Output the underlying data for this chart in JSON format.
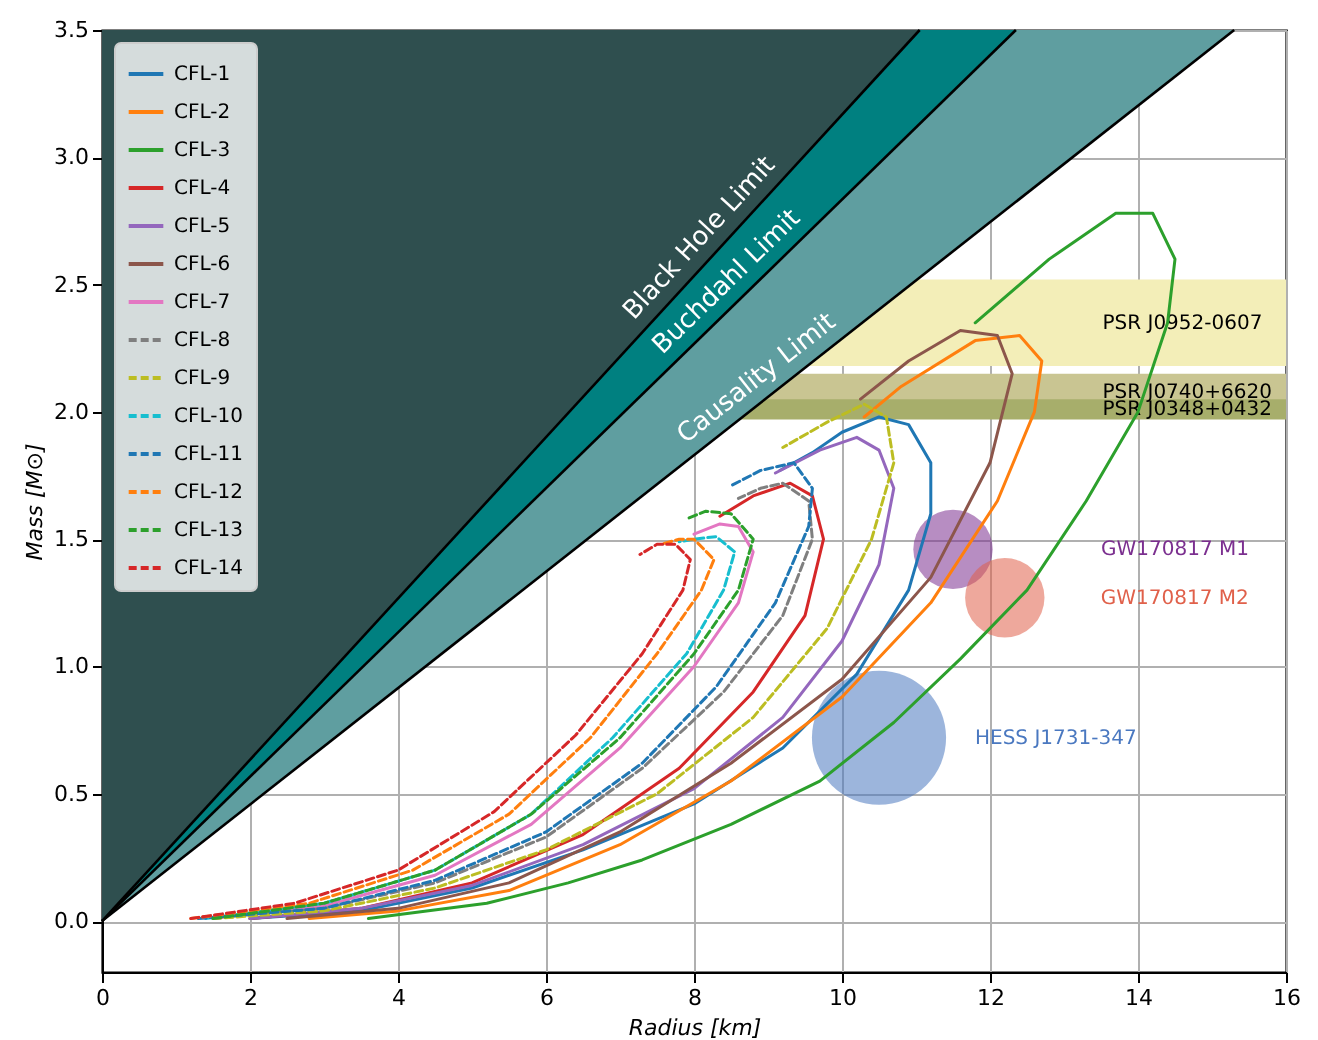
{
  "chart_data": {
    "type": "line",
    "xlabel": "Radius [km]",
    "ylabel": "Mass [M⊙]",
    "xlim": [
      0,
      16
    ],
    "xticks": [
      0,
      2,
      4,
      6,
      8,
      10,
      12,
      14,
      16
    ],
    "ylim": [
      -0.2,
      3.5
    ],
    "yticks": [
      {
        "value": 0,
        "label": "0.0"
      },
      0.5,
      {
        "value": 1,
        "label": "1.0"
      },
      1.5,
      {
        "value": 2,
        "label": "2.0"
      },
      2.5,
      {
        "value": 3,
        "label": "3.0"
      },
      3.5
    ],
    "grid": true,
    "legend": "top left",
    "bands": [
      {
        "axis": "y",
        "from": 2.18,
        "to": 2.52,
        "label": "PSR J0952-0607",
        "color": "#f3eeb8"
      },
      {
        "axis": "y",
        "from": 2.01,
        "to": 2.15,
        "label": "PSR J0740+6620",
        "color": "#c9c592"
      },
      {
        "axis": "y",
        "from": 1.97,
        "to": 2.05,
        "label": "PSR J0348+0432",
        "color": "#a7ae6b"
      }
    ],
    "series": [
      {
        "type": "area",
        "name": "Black Hole Limit",
        "color": "#2f4f4f",
        "x": [
          0,
          11.05
        ],
        "values": [
          0,
          3.5
        ]
      },
      {
        "type": "area",
        "name": "Buchdahl Limit",
        "color": "#008080",
        "x": [
          0,
          12.35
        ],
        "values": [
          0,
          3.5
        ]
      },
      {
        "type": "area",
        "name": "Causality Limit",
        "color": "#5f9ea0",
        "x": [
          0,
          15.3
        ],
        "values": [
          0,
          3.5
        ]
      },
      {
        "type": "bubble",
        "name": "GW170817 M1",
        "color": "#7b2f8f",
        "x": [
          11.5
        ],
        "values": [
          1.46
        ],
        "sizes": [
          0.35
        ]
      },
      {
        "type": "bubble",
        "name": "GW170817 M2",
        "color": "#e0604a",
        "x": [
          12.2
        ],
        "values": [
          1.27
        ],
        "sizes": [
          0.35
        ]
      },
      {
        "type": "bubble",
        "name": "HESS J1731-347",
        "color": "#4a78c0",
        "x": [
          10.5
        ],
        "values": [
          0.72
        ],
        "sizes": [
          1
        ]
      },
      {
        "name": "CFL-1",
        "color": "#1f77b4",
        "line_style": "solid",
        "x": [
          2,
          3.5,
          5,
          6.5,
          8,
          9.2,
          10.2,
          10.9,
          11.2,
          11.2,
          10.9,
          10.5,
          10,
          9.6,
          9.16
        ],
        "values": [
          0.01,
          0.04,
          0.13,
          0.28,
          0.46,
          0.68,
          0.97,
          1.3,
          1.6,
          1.8,
          1.95,
          1.98,
          1.92,
          1.84,
          1.77
        ]
      },
      {
        "name": "CFL-2",
        "color": "#ff7f0e",
        "line_style": "solid",
        "x": [
          2.8,
          4,
          5.5,
          7,
          8.5,
          10,
          11.2,
          12.1,
          12.6,
          12.7,
          12.4,
          11.8,
          10.8,
          10.3
        ],
        "values": [
          0.01,
          0.04,
          0.12,
          0.3,
          0.55,
          0.88,
          1.25,
          1.65,
          2.0,
          2.2,
          2.3,
          2.28,
          2.1,
          1.98
        ]
      },
      {
        "name": "CFL-3",
        "color": "#2ca02c",
        "line_style": "solid",
        "x": [
          3.6,
          5.2,
          6.3,
          7.3,
          8.5,
          9.7,
          10.7,
          11.6,
          12.5,
          13.3,
          14.0,
          14.4,
          14.5,
          14.2,
          13.7,
          12.8,
          11.8
        ],
        "values": [
          0.01,
          0.07,
          0.15,
          0.24,
          0.38,
          0.55,
          0.78,
          1.03,
          1.3,
          1.65,
          2.0,
          2.35,
          2.6,
          2.78,
          2.78,
          2.6,
          2.35
        ]
      },
      {
        "name": "CFL-4",
        "color": "#d62728",
        "line_style": "solid",
        "x": [
          2,
          3.5,
          5,
          6.5,
          7.8,
          8.8,
          9.5,
          9.75,
          9.6,
          9.3,
          8.8,
          8.35
        ],
        "values": [
          0.01,
          0.05,
          0.15,
          0.34,
          0.6,
          0.9,
          1.2,
          1.5,
          1.67,
          1.72,
          1.67,
          1.59
        ]
      },
      {
        "name": "CFL-5",
        "color": "#9467bd",
        "line_style": "solid",
        "x": [
          2,
          3.5,
          5,
          6.5,
          8,
          9.2,
          10,
          10.5,
          10.7,
          10.5,
          10.2,
          9.7,
          9.1
        ],
        "values": [
          0.01,
          0.05,
          0.14,
          0.3,
          0.52,
          0.8,
          1.1,
          1.4,
          1.7,
          1.85,
          1.9,
          1.85,
          1.76
        ]
      },
      {
        "name": "CFL-6",
        "color": "#8c564b",
        "line_style": "solid",
        "x": [
          2.5,
          4,
          5.5,
          7,
          8.5,
          10,
          11.2,
          12,
          12.3,
          12.1,
          11.6,
          10.9,
          10.25
        ],
        "values": [
          0.01,
          0.05,
          0.15,
          0.35,
          0.62,
          0.95,
          1.35,
          1.8,
          2.15,
          2.3,
          2.32,
          2.2,
          2.05
        ]
      },
      {
        "name": "CFL-7",
        "color": "#e377c2",
        "line_style": "solid",
        "x": [
          1.5,
          3,
          4.5,
          5.8,
          7,
          8,
          8.6,
          8.8,
          8.6,
          8.35,
          8.0
        ],
        "values": [
          0.01,
          0.06,
          0.18,
          0.38,
          0.68,
          1.0,
          1.25,
          1.45,
          1.55,
          1.56,
          1.52
        ]
      },
      {
        "name": "CFL-8",
        "color": "#7f7f7f",
        "line_style": "dashed",
        "x": [
          1.5,
          3,
          4.5,
          6,
          7.3,
          8.4,
          9.2,
          9.6,
          9.55,
          9.2,
          8.9,
          8.6
        ],
        "values": [
          0.01,
          0.05,
          0.15,
          0.33,
          0.6,
          0.9,
          1.2,
          1.5,
          1.65,
          1.72,
          1.7,
          1.66
        ]
      },
      {
        "name": "CFL-9",
        "color": "#bcbd22",
        "line_style": "dashed",
        "x": [
          1.5,
          3,
          4.5,
          6,
          7.5,
          8.8,
          9.8,
          10.4,
          10.7,
          10.6,
          10.3,
          9.8,
          9.2
        ],
        "values": [
          0.01,
          0.04,
          0.13,
          0.28,
          0.5,
          0.8,
          1.15,
          1.5,
          1.8,
          1.98,
          2.03,
          1.96,
          1.86
        ]
      },
      {
        "name": "CFL-10",
        "color": "#17becf",
        "line_style": "dashed",
        "x": [
          1.4,
          3,
          4.5,
          5.8,
          6.9,
          7.9,
          8.4,
          8.55,
          8.3,
          8.0,
          7.8
        ],
        "values": [
          0.01,
          0.07,
          0.2,
          0.42,
          0.72,
          1.05,
          1.3,
          1.45,
          1.51,
          1.5,
          1.49
        ]
      },
      {
        "name": "CFL-11",
        "color": "#1f77b4",
        "line_style": "dashed",
        "x": [
          1.3,
          3,
          4.5,
          6,
          7.3,
          8.3,
          9.1,
          9.55,
          9.6,
          9.35,
          8.9,
          8.5
        ],
        "values": [
          0.01,
          0.05,
          0.16,
          0.35,
          0.62,
          0.92,
          1.25,
          1.55,
          1.7,
          1.8,
          1.77,
          1.71
        ]
      },
      {
        "name": "CFL-12",
        "color": "#ff7f0e",
        "line_style": "dashed",
        "x": [
          1.2,
          2.8,
          4.2,
          5.5,
          6.6,
          7.5,
          8.1,
          8.27,
          8.0,
          7.8,
          7.55
        ],
        "values": [
          0.01,
          0.07,
          0.2,
          0.42,
          0.72,
          1.05,
          1.3,
          1.42,
          1.5,
          1.5,
          1.48
        ]
      },
      {
        "name": "CFL-13",
        "color": "#2ca02c",
        "line_style": "dashed",
        "x": [
          1.5,
          3,
          4.5,
          5.8,
          7,
          8,
          8.6,
          8.8,
          8.5,
          8.16,
          7.9
        ],
        "values": [
          0.01,
          0.07,
          0.2,
          0.42,
          0.72,
          1.05,
          1.3,
          1.5,
          1.6,
          1.61,
          1.58
        ]
      },
      {
        "name": "CFL-14",
        "color": "#d62728",
        "line_style": "dashed",
        "x": [
          1.2,
          2.6,
          4,
          5.3,
          6.4,
          7.3,
          7.85,
          7.95,
          7.75,
          7.5,
          7.27
        ],
        "values": [
          0.01,
          0.07,
          0.2,
          0.43,
          0.73,
          1.05,
          1.3,
          1.42,
          1.48,
          1.48,
          1.44
        ]
      }
    ]
  }
}
